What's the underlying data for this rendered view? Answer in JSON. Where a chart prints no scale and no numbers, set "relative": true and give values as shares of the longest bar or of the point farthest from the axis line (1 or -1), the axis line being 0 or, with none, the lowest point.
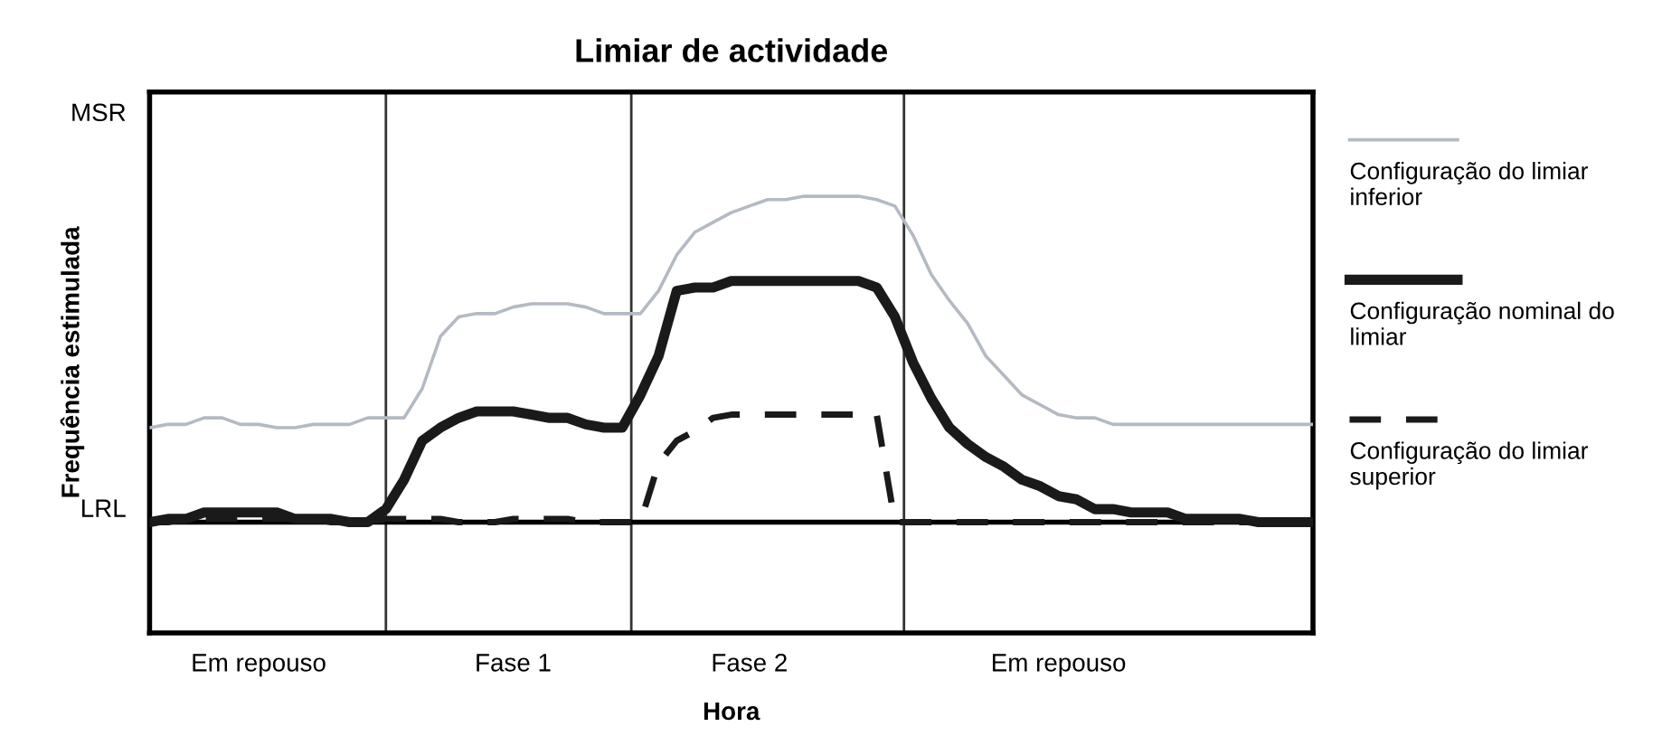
{
  "chart_data": {
    "type": "line",
    "title": "Limiar de actividade",
    "xlabel": "Hora",
    "ylabel": "Frequência estimulada",
    "relative": true,
    "categories": [
      null,
      null,
      null,
      null,
      null,
      null,
      "Em repouso",
      null,
      null,
      null,
      null,
      null,
      null,
      null,
      null,
      null,
      null,
      null,
      null,
      null,
      "Fase 1",
      null,
      null,
      null,
      null,
      null,
      null,
      null,
      null,
      null,
      null,
      null,
      null,
      "Fase 2",
      null,
      null,
      null,
      null,
      null,
      null,
      null,
      null,
      null,
      null,
      null,
      null,
      null,
      null,
      null,
      null,
      "Em repouso",
      null,
      null,
      null,
      null,
      null,
      null,
      null,
      null,
      null,
      null,
      null,
      null,
      null,
      null
    ],
    "series": [
      {
        "name": "Configuração do limiar inferior",
        "color": "#b4bac2",
        "line_style": "solid",
        "values": [
          0.29,
          0.3,
          0.3,
          0.32,
          0.32,
          0.3,
          0.3,
          0.29,
          0.29,
          0.3,
          0.3,
          0.3,
          0.32,
          0.32,
          0.32,
          0.41,
          0.57,
          0.63,
          0.64,
          0.64,
          0.66,
          0.67,
          0.67,
          0.67,
          0.66,
          0.64,
          0.64,
          0.64,
          0.71,
          0.82,
          0.89,
          0.92,
          0.95,
          0.97,
          0.99,
          0.99,
          1,
          1,
          1,
          1,
          0.99,
          0.97,
          0.88,
          0.76,
          0.68,
          0.61,
          0.51,
          0.45,
          0.39,
          0.36,
          0.33,
          0.32,
          0.32,
          0.3,
          0.3,
          0.3,
          0.3,
          0.3,
          0.3,
          0.3,
          0.3,
          0.3,
          0.3,
          0.3,
          0.3
        ]
      },
      {
        "name": "Configuração nominal do limiar",
        "color": "#1a1a1a",
        "line_style": "solid",
        "values": [
          0,
          0.01,
          0.01,
          0.03,
          0.03,
          0.03,
          0.03,
          0.03,
          0.01,
          0.01,
          0.01,
          0,
          0,
          0.04,
          0.13,
          0.25,
          0.29,
          0.32,
          0.34,
          0.34,
          0.34,
          0.33,
          0.32,
          0.32,
          0.3,
          0.29,
          0.29,
          0.39,
          0.51,
          0.71,
          0.72,
          0.72,
          0.74,
          0.74,
          0.74,
          0.74,
          0.74,
          0.74,
          0.74,
          0.74,
          0.72,
          0.63,
          0.49,
          0.38,
          0.29,
          0.24,
          0.2,
          0.17,
          0.13,
          0.11,
          0.08,
          0.07,
          0.04,
          0.04,
          0.03,
          0.03,
          0.03,
          0.01,
          0.01,
          0.01,
          0.01,
          0,
          0,
          0,
          0
        ]
      },
      {
        "name": "Configuração do limiar superior",
        "color": "#1a1a1a",
        "line_style": "dashed",
        "values": [
          0,
          0,
          0.01,
          0.01,
          0.01,
          0.01,
          0.01,
          0.01,
          0.01,
          0.01,
          0,
          0,
          0,
          0.01,
          0.01,
          0.01,
          0.01,
          0,
          0,
          0,
          0.01,
          0.01,
          0.01,
          0.01,
          0,
          0,
          0,
          0,
          0.18,
          0.25,
          0.28,
          0.32,
          0.33,
          0.33,
          0.33,
          0.33,
          0.33,
          0.33,
          0.33,
          0.33,
          0.33,
          0,
          0,
          0,
          0,
          0,
          0,
          0,
          0,
          0,
          0,
          0,
          0,
          0,
          0,
          0,
          0,
          0,
          0,
          0,
          0,
          0,
          0,
          0,
          0
        ]
      }
    ],
    "ref_lines": [
      {
        "axis": "y",
        "value": 0,
        "label": "LRL",
        "color": "#000000"
      }
    ],
    "annotations": [
      "MSR"
    ],
    "legend": "right"
  }
}
